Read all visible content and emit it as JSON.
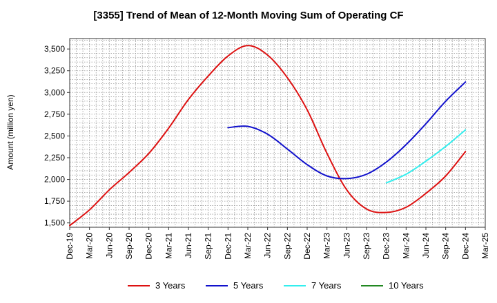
{
  "chart_data": {
    "type": "line",
    "title": "[3355]  Trend of Mean of 12-Month Moving Sum of Operating CF",
    "xlabel": "",
    "ylabel": "Amount (million yen)",
    "ylim": [
      1450,
      3620
    ],
    "yticks": [
      1500,
      1750,
      2000,
      2250,
      2500,
      2750,
      3000,
      3250,
      3500
    ],
    "ytick_labels": [
      "1,500",
      "1,750",
      "2,000",
      "2,250",
      "2,500",
      "2,750",
      "3,000",
      "3,250",
      "3,500"
    ],
    "categories": [
      "Dec-19",
      "Mar-20",
      "Jun-20",
      "Sep-20",
      "Dec-20",
      "Mar-21",
      "Jun-21",
      "Sep-21",
      "Dec-21",
      "Mar-22",
      "Jun-22",
      "Sep-22",
      "Dec-22",
      "Mar-23",
      "Jun-23",
      "Sep-23",
      "Dec-23",
      "Mar-24",
      "Jun-24",
      "Sep-24",
      "Dec-24",
      "Mar-25"
    ],
    "grid": true,
    "legend_position": "bottom",
    "series": [
      {
        "name": "3 Years",
        "color": "#dd1111",
        "values": [
          1470,
          1650,
          1880,
          2080,
          2300,
          2590,
          2920,
          3190,
          3420,
          3540,
          3430,
          3170,
          2800,
          2300,
          1880,
          1660,
          1620,
          1680,
          1840,
          2040,
          2320,
          null
        ]
      },
      {
        "name": "5 Years",
        "color": "#1111cc",
        "values": [
          null,
          null,
          null,
          null,
          null,
          null,
          null,
          null,
          2595,
          2610,
          2520,
          2350,
          2170,
          2040,
          2010,
          2060,
          2200,
          2400,
          2640,
          2900,
          3120,
          null
        ]
      },
      {
        "name": "7 Years",
        "color": "#33eeee",
        "values": [
          null,
          null,
          null,
          null,
          null,
          null,
          null,
          null,
          null,
          null,
          null,
          null,
          null,
          null,
          null,
          null,
          1960,
          2060,
          2210,
          2380,
          2570,
          null
        ]
      },
      {
        "name": "10 Years",
        "color": "#228822",
        "values": [
          null,
          null,
          null,
          null,
          null,
          null,
          null,
          null,
          null,
          null,
          null,
          null,
          null,
          null,
          null,
          null,
          null,
          null,
          null,
          null,
          null,
          null
        ]
      }
    ]
  }
}
